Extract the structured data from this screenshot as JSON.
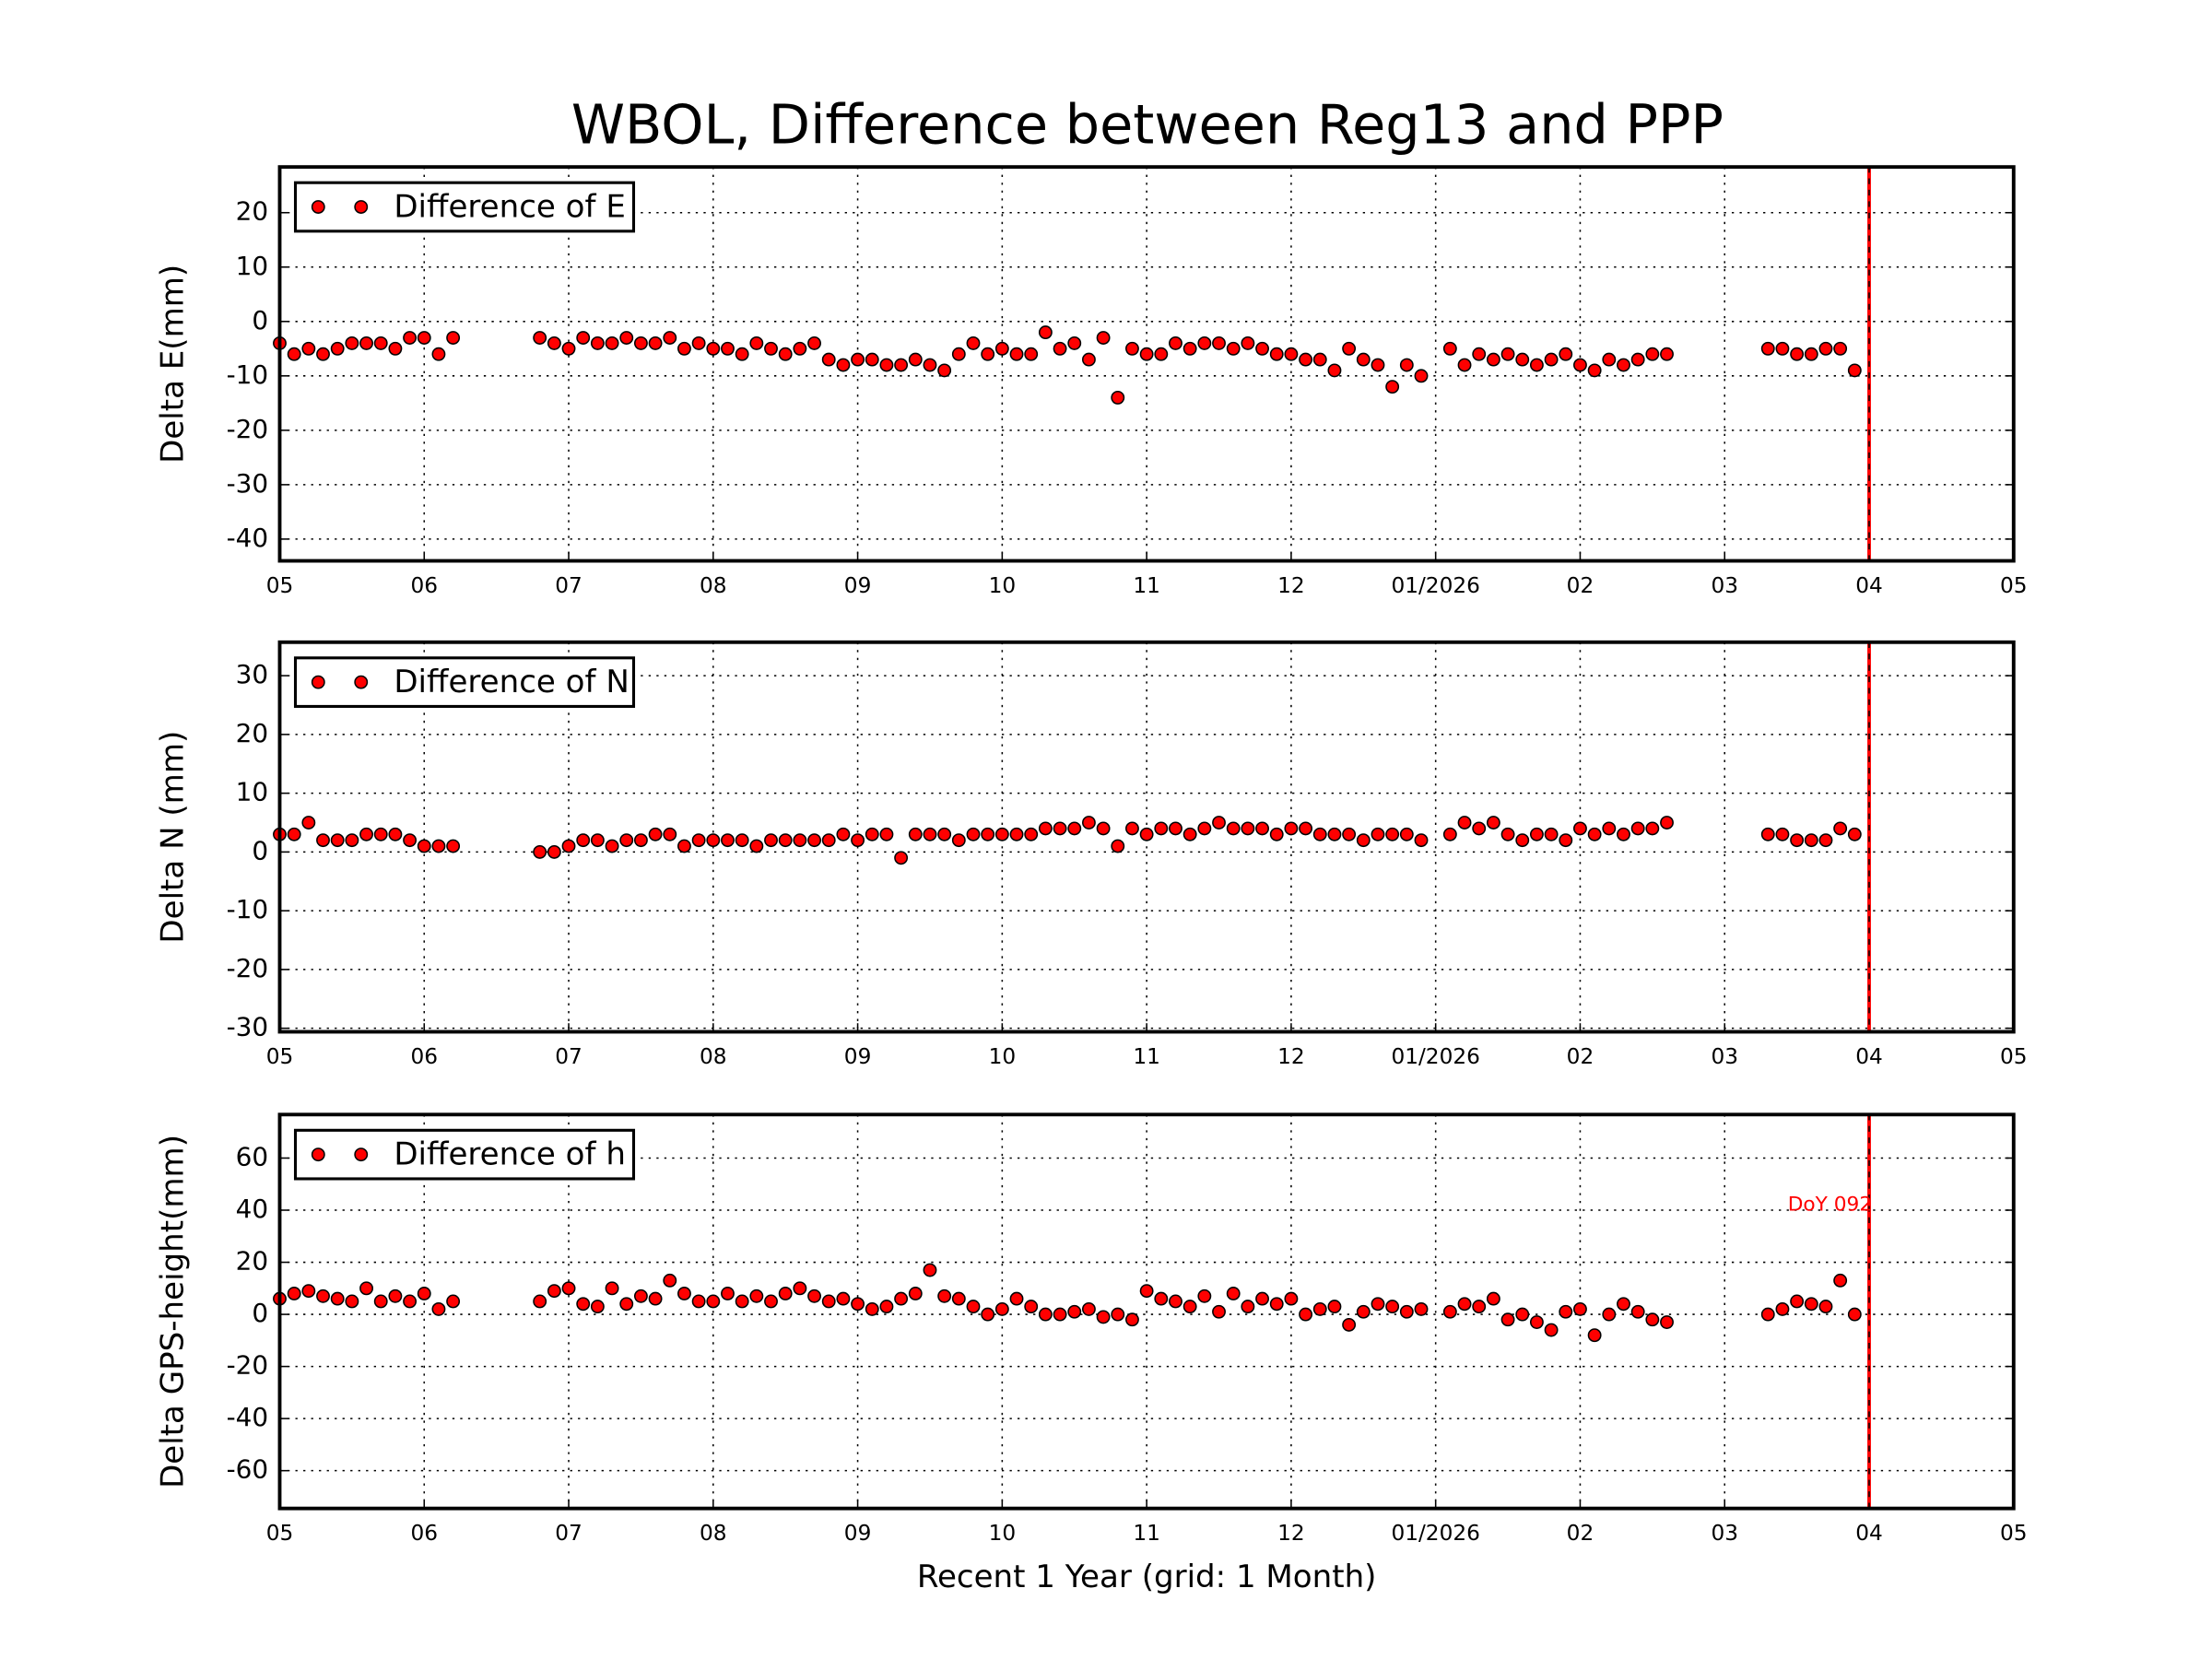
{
  "chart_data": [
    {
      "type": "scatter",
      "title": "WBOL, Difference between Reg13 and PPP",
      "ylabel": "Delta E(mm)",
      "series": [
        {
          "name": "Difference of E",
          "color": "#ff0000",
          "x": [
            0,
            0.1,
            0.2,
            0.3,
            0.4,
            0.5,
            0.6,
            0.7,
            0.8,
            0.9,
            1.0,
            1.1,
            1.2,
            1.8,
            1.9,
            2.0,
            2.1,
            2.2,
            2.3,
            2.4,
            2.5,
            2.6,
            2.7,
            2.8,
            2.9,
            3.0,
            3.1,
            3.2,
            3.3,
            3.4,
            3.5,
            3.6,
            3.7,
            3.8,
            3.9,
            4.0,
            4.1,
            4.2,
            4.3,
            4.4,
            4.5,
            4.6,
            4.7,
            4.8,
            4.9,
            5.0,
            5.1,
            5.2,
            5.3,
            5.4,
            5.5,
            5.6,
            5.7,
            5.8,
            5.9,
            6.0,
            6.1,
            6.2,
            6.3,
            6.4,
            6.5,
            6.6,
            6.7,
            6.8,
            6.9,
            7.0,
            7.1,
            7.2,
            7.3,
            7.4,
            7.5,
            7.6,
            7.7,
            7.8,
            7.9,
            8.1,
            8.2,
            8.3,
            8.4,
            8.5,
            8.6,
            8.7,
            8.8,
            8.9,
            9.0,
            9.1,
            9.2,
            9.3,
            9.4,
            9.5,
            9.6,
            10.3,
            10.4,
            10.5,
            10.6,
            10.7,
            10.8,
            10.9
          ],
          "values": [
            -4,
            -6,
            -5,
            -6,
            -5,
            -4,
            -4,
            -4,
            -5,
            -3,
            -3,
            -6,
            -3,
            -3,
            -4,
            -5,
            -3,
            -4,
            -4,
            -3,
            -4,
            -4,
            -3,
            -5,
            -4,
            -5,
            -5,
            -6,
            -4,
            -5,
            -6,
            -5,
            -4,
            -7,
            -8,
            -7,
            -7,
            -8,
            -8,
            -7,
            -8,
            -9,
            -6,
            -4,
            -6,
            -5,
            -6,
            -6,
            -2,
            -5,
            -4,
            -7,
            -3,
            -14,
            -5,
            -6,
            -6,
            -4,
            -5,
            -4,
            -4,
            -5,
            -4,
            -5,
            -6,
            -6,
            -7,
            -7,
            -9,
            -5,
            -7,
            -8,
            -12,
            -8,
            -10,
            -5,
            -8,
            -6,
            -7,
            -6,
            -7,
            -8,
            -7,
            -6,
            -8,
            -9,
            -7,
            -8,
            -7,
            -6,
            -6,
            -5,
            -5,
            -6,
            -6,
            -5,
            -5,
            -9
          ]
        }
      ],
      "xlim": [
        0,
        12
      ],
      "ylim": [
        -44,
        28.4
      ],
      "yticks": [
        -40,
        -30,
        -20,
        -10,
        0,
        10,
        20
      ],
      "xticks": [
        {
          "value": 0,
          "label": "05"
        },
        {
          "value": 1,
          "label": "06"
        },
        {
          "value": 2,
          "label": "07"
        },
        {
          "value": 3,
          "label": "08"
        },
        {
          "value": 4,
          "label": "09"
        },
        {
          "value": 5,
          "label": "10"
        },
        {
          "value": 6,
          "label": "11"
        },
        {
          "value": 7,
          "label": "12"
        },
        {
          "value": 8,
          "label": "01/2026"
        },
        {
          "value": 9,
          "label": "02"
        },
        {
          "value": 10,
          "label": "03"
        },
        {
          "value": 11,
          "label": "04"
        },
        {
          "value": 12,
          "label": "05"
        }
      ],
      "vline": 11,
      "grid": true,
      "legend": "upper left"
    },
    {
      "type": "scatter",
      "ylabel": "Delta N (mm)",
      "series": [
        {
          "name": "Difference of N",
          "color": "#ff0000",
          "x": [
            0,
            0.1,
            0.2,
            0.3,
            0.4,
            0.5,
            0.6,
            0.7,
            0.8,
            0.9,
            1.0,
            1.1,
            1.2,
            1.8,
            1.9,
            2.0,
            2.1,
            2.2,
            2.3,
            2.4,
            2.5,
            2.6,
            2.7,
            2.8,
            2.9,
            3.0,
            3.1,
            3.2,
            3.3,
            3.4,
            3.5,
            3.6,
            3.7,
            3.8,
            3.9,
            4.0,
            4.1,
            4.2,
            4.3,
            4.4,
            4.5,
            4.6,
            4.7,
            4.8,
            4.9,
            5.0,
            5.1,
            5.2,
            5.3,
            5.4,
            5.5,
            5.6,
            5.7,
            5.8,
            5.9,
            6.0,
            6.1,
            6.2,
            6.3,
            6.4,
            6.5,
            6.6,
            6.7,
            6.8,
            6.9,
            7.0,
            7.1,
            7.2,
            7.3,
            7.4,
            7.5,
            7.6,
            7.7,
            7.8,
            7.9,
            8.1,
            8.2,
            8.3,
            8.4,
            8.5,
            8.6,
            8.7,
            8.8,
            8.9,
            9.0,
            9.1,
            9.2,
            9.3,
            9.4,
            9.5,
            9.6,
            10.3,
            10.4,
            10.5,
            10.6,
            10.7,
            10.8,
            10.9
          ],
          "values": [
            3,
            3,
            5,
            2,
            2,
            2,
            3,
            3,
            3,
            2,
            1,
            1,
            1,
            0,
            0,
            1,
            2,
            2,
            1,
            2,
            2,
            3,
            3,
            1,
            2,
            2,
            2,
            2,
            1,
            2,
            2,
            2,
            2,
            2,
            3,
            2,
            3,
            3,
            -1,
            3,
            3,
            3,
            2,
            3,
            3,
            3,
            3,
            3,
            4,
            4,
            4,
            5,
            4,
            1,
            4,
            3,
            4,
            4,
            3,
            4,
            5,
            4,
            4,
            4,
            3,
            4,
            4,
            3,
            3,
            3,
            2,
            3,
            3,
            3,
            2,
            3,
            5,
            4,
            5,
            3,
            2,
            3,
            3,
            2,
            4,
            3,
            4,
            3,
            4,
            4,
            5,
            3,
            3,
            2,
            2,
            2,
            4,
            3
          ]
        }
      ],
      "xlim": [
        0,
        12
      ],
      "ylim": [
        -30.6,
        35.7
      ],
      "yticks": [
        -30,
        -20,
        -10,
        0,
        10,
        20,
        30
      ],
      "xticks": [
        {
          "value": 0,
          "label": "05"
        },
        {
          "value": 1,
          "label": "06"
        },
        {
          "value": 2,
          "label": "07"
        },
        {
          "value": 3,
          "label": "08"
        },
        {
          "value": 4,
          "label": "09"
        },
        {
          "value": 5,
          "label": "10"
        },
        {
          "value": 6,
          "label": "11"
        },
        {
          "value": 7,
          "label": "12"
        },
        {
          "value": 8,
          "label": "01/2026"
        },
        {
          "value": 9,
          "label": "02"
        },
        {
          "value": 10,
          "label": "03"
        },
        {
          "value": 11,
          "label": "04"
        },
        {
          "value": 12,
          "label": "05"
        }
      ],
      "vline": 11,
      "grid": true,
      "legend": "upper left"
    },
    {
      "type": "scatter",
      "ylabel": "Delta GPS-height(mm)",
      "xlabel": "Recent 1 Year (grid: 1 Month)",
      "annotation": "DoY 092",
      "series": [
        {
          "name": "Difference of h",
          "color": "#ff0000",
          "x": [
            0,
            0.1,
            0.2,
            0.3,
            0.4,
            0.5,
            0.6,
            0.7,
            0.8,
            0.9,
            1.0,
            1.1,
            1.2,
            1.8,
            1.9,
            2.0,
            2.1,
            2.2,
            2.3,
            2.4,
            2.5,
            2.6,
            2.7,
            2.8,
            2.9,
            3.0,
            3.1,
            3.2,
            3.3,
            3.4,
            3.5,
            3.6,
            3.7,
            3.8,
            3.9,
            4.0,
            4.1,
            4.2,
            4.3,
            4.4,
            4.5,
            4.6,
            4.7,
            4.8,
            4.9,
            5.0,
            5.1,
            5.2,
            5.3,
            5.4,
            5.5,
            5.6,
            5.7,
            5.8,
            5.9,
            6.0,
            6.1,
            6.2,
            6.3,
            6.4,
            6.5,
            6.6,
            6.7,
            6.8,
            6.9,
            7.0,
            7.1,
            7.2,
            7.3,
            7.4,
            7.5,
            7.6,
            7.7,
            7.8,
            7.9,
            8.1,
            8.2,
            8.3,
            8.4,
            8.5,
            8.6,
            8.7,
            8.8,
            8.9,
            9.0,
            9.1,
            9.2,
            9.3,
            9.4,
            9.5,
            9.6,
            10.3,
            10.4,
            10.5,
            10.6,
            10.7,
            10.8,
            10.9
          ],
          "values": [
            6,
            8,
            9,
            7,
            6,
            5,
            10,
            5,
            7,
            5,
            8,
            2,
            5,
            5,
            9,
            10,
            4,
            3,
            10,
            4,
            7,
            6,
            13,
            8,
            5,
            5,
            8,
            5,
            7,
            5,
            8,
            10,
            7,
            5,
            6,
            4,
            2,
            3,
            6,
            8,
            17,
            7,
            6,
            3,
            0,
            2,
            6,
            3,
            0,
            0,
            1,
            2,
            -1,
            0,
            -2,
            9,
            6,
            5,
            3,
            7,
            1,
            8,
            3,
            6,
            4,
            6,
            0,
            2,
            3,
            -4,
            1,
            4,
            3,
            1,
            2,
            1,
            4,
            3,
            6,
            -2,
            0,
            -3,
            -6,
            1,
            2,
            -8,
            0,
            4,
            1,
            -2,
            -3,
            0,
            2,
            5,
            4,
            3,
            13,
            0
          ]
        }
      ],
      "xlim": [
        0,
        12
      ],
      "ylim": [
        -74.5,
        76.7
      ],
      "yticks": [
        -60,
        -40,
        -20,
        0,
        20,
        40,
        60
      ],
      "xticks": [
        {
          "value": 0,
          "label": "05"
        },
        {
          "value": 1,
          "label": "06"
        },
        {
          "value": 2,
          "label": "07"
        },
        {
          "value": 3,
          "label": "08"
        },
        {
          "value": 4,
          "label": "09"
        },
        {
          "value": 5,
          "label": "10"
        },
        {
          "value": 6,
          "label": "11"
        },
        {
          "value": 7,
          "label": "12"
        },
        {
          "value": 8,
          "label": "01/2026"
        },
        {
          "value": 9,
          "label": "02"
        },
        {
          "value": 10,
          "label": "03"
        },
        {
          "value": 11,
          "label": "04"
        },
        {
          "value": 12,
          "label": "05"
        }
      ],
      "vline": 11,
      "grid": true,
      "legend": "upper left"
    }
  ]
}
